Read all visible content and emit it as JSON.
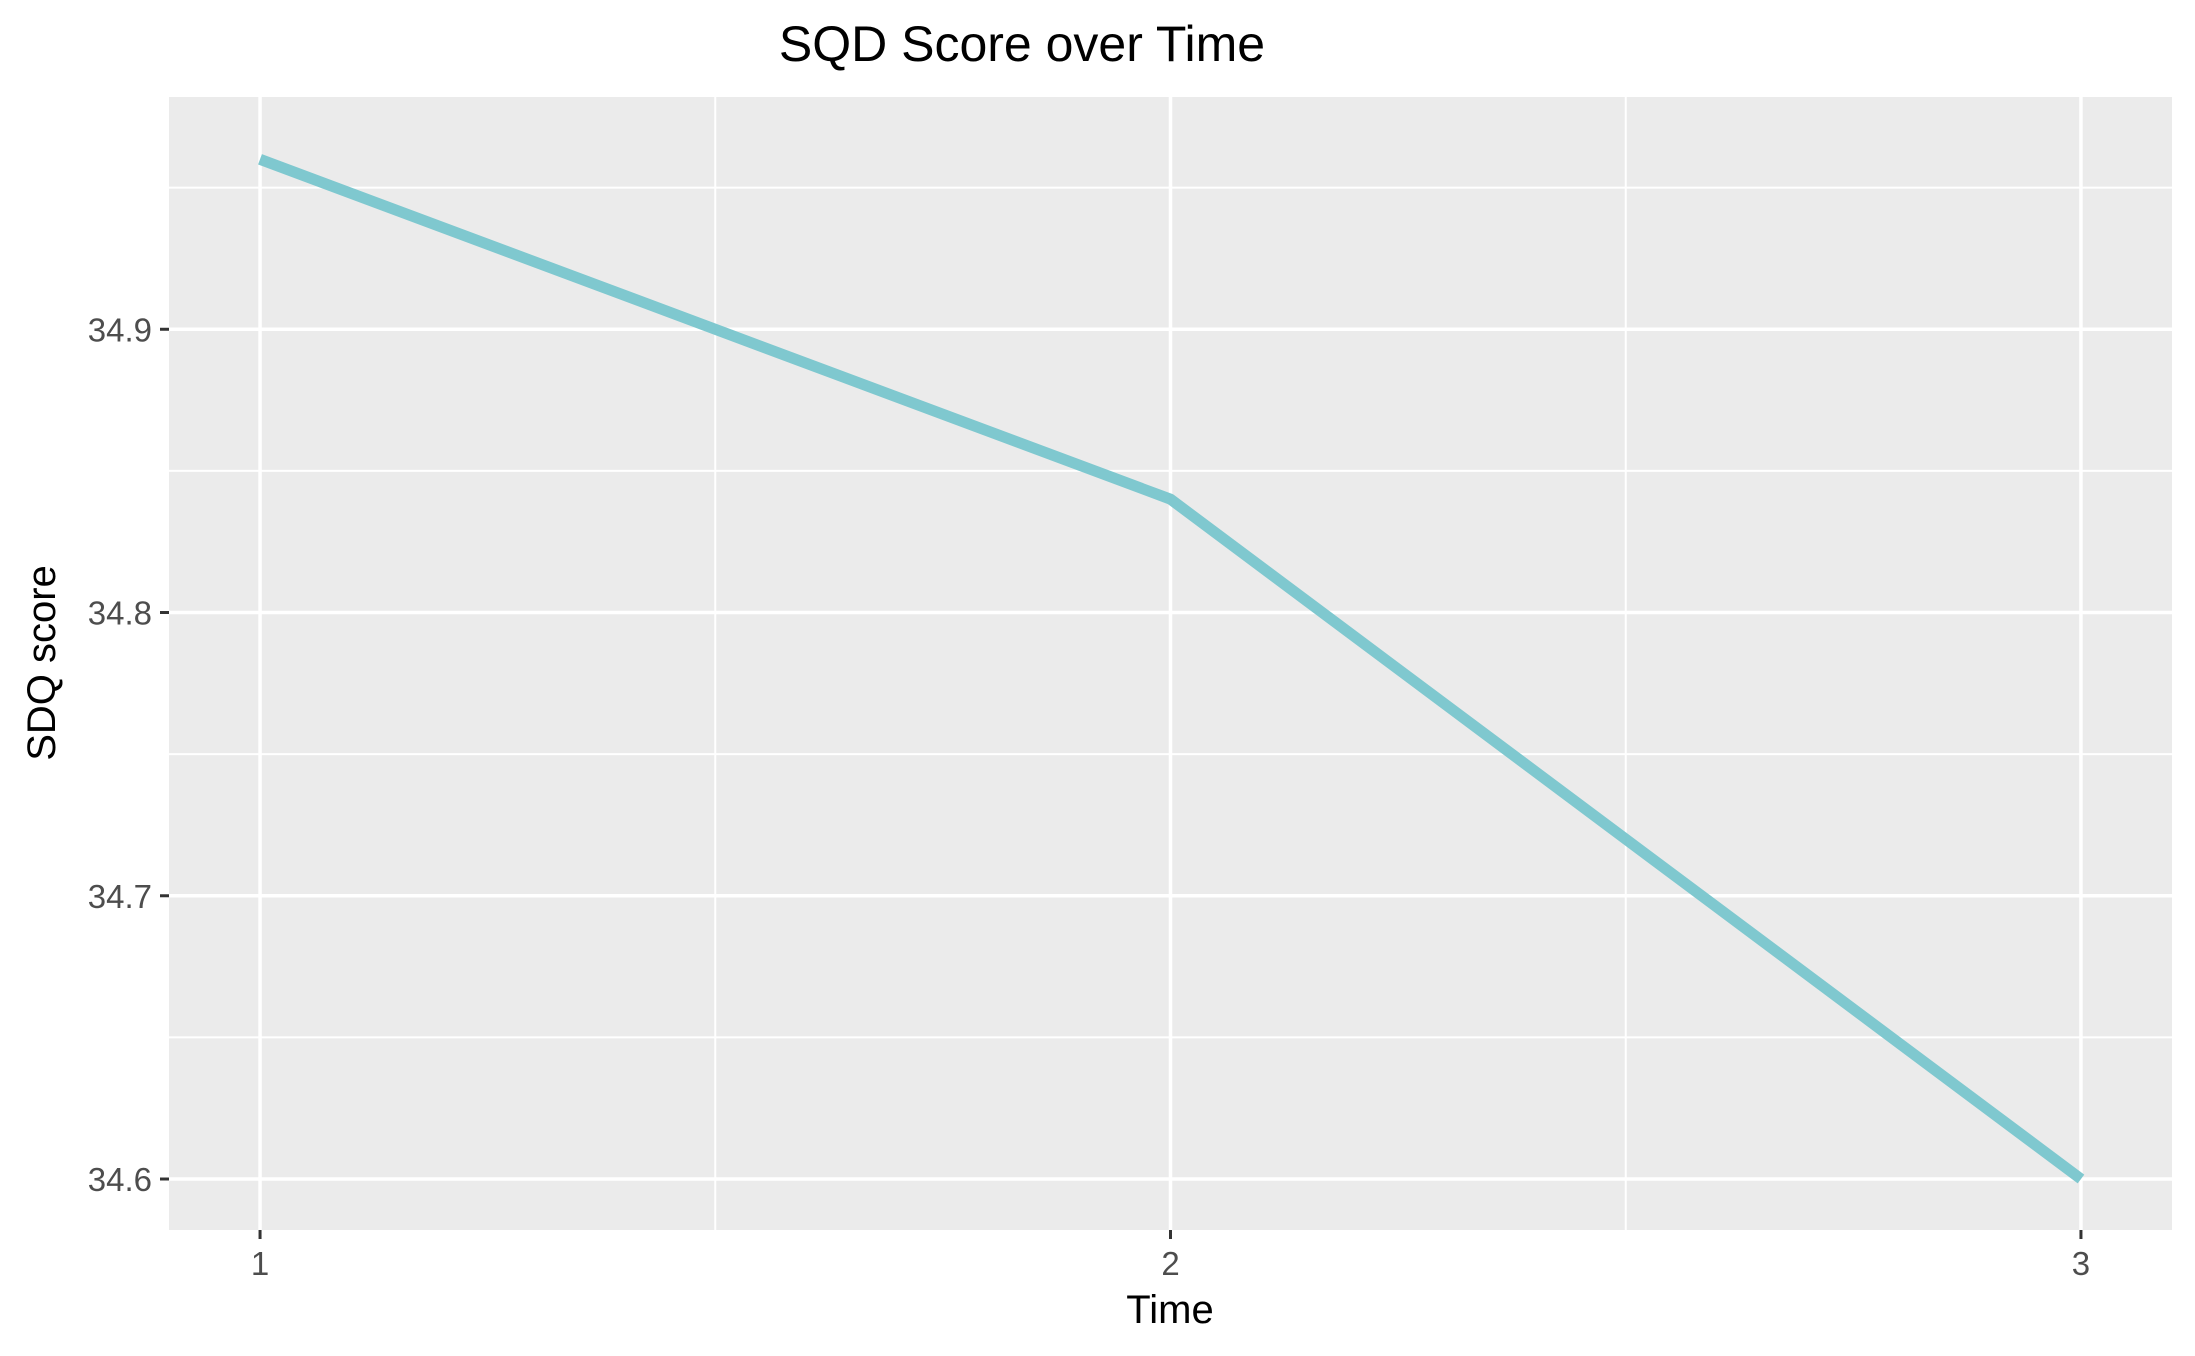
{
  "chart_data": {
    "type": "line",
    "title": "SQD Score over Time",
    "xlabel": "Time",
    "ylabel": "SDQ score",
    "x": [
      1,
      2,
      3
    ],
    "series": [
      {
        "values": [
          34.96,
          34.84,
          34.6
        ]
      }
    ],
    "xlim": [
      0.9,
      3.1
    ],
    "ylim": [
      34.582,
      34.982
    ],
    "x_ticks": [
      1,
      2,
      3
    ],
    "x_tick_labels": [
      "1",
      "2",
      "3"
    ],
    "y_ticks": [
      34.6,
      34.7,
      34.8,
      34.9
    ],
    "y_tick_labels": [
      "34.6",
      "34.7",
      "34.8",
      "34.9"
    ],
    "grid": true,
    "legend": "none",
    "colors": {
      "line": "#7fc8cf",
      "panel": "#ebebeb",
      "grid": "#ffffff"
    }
  }
}
